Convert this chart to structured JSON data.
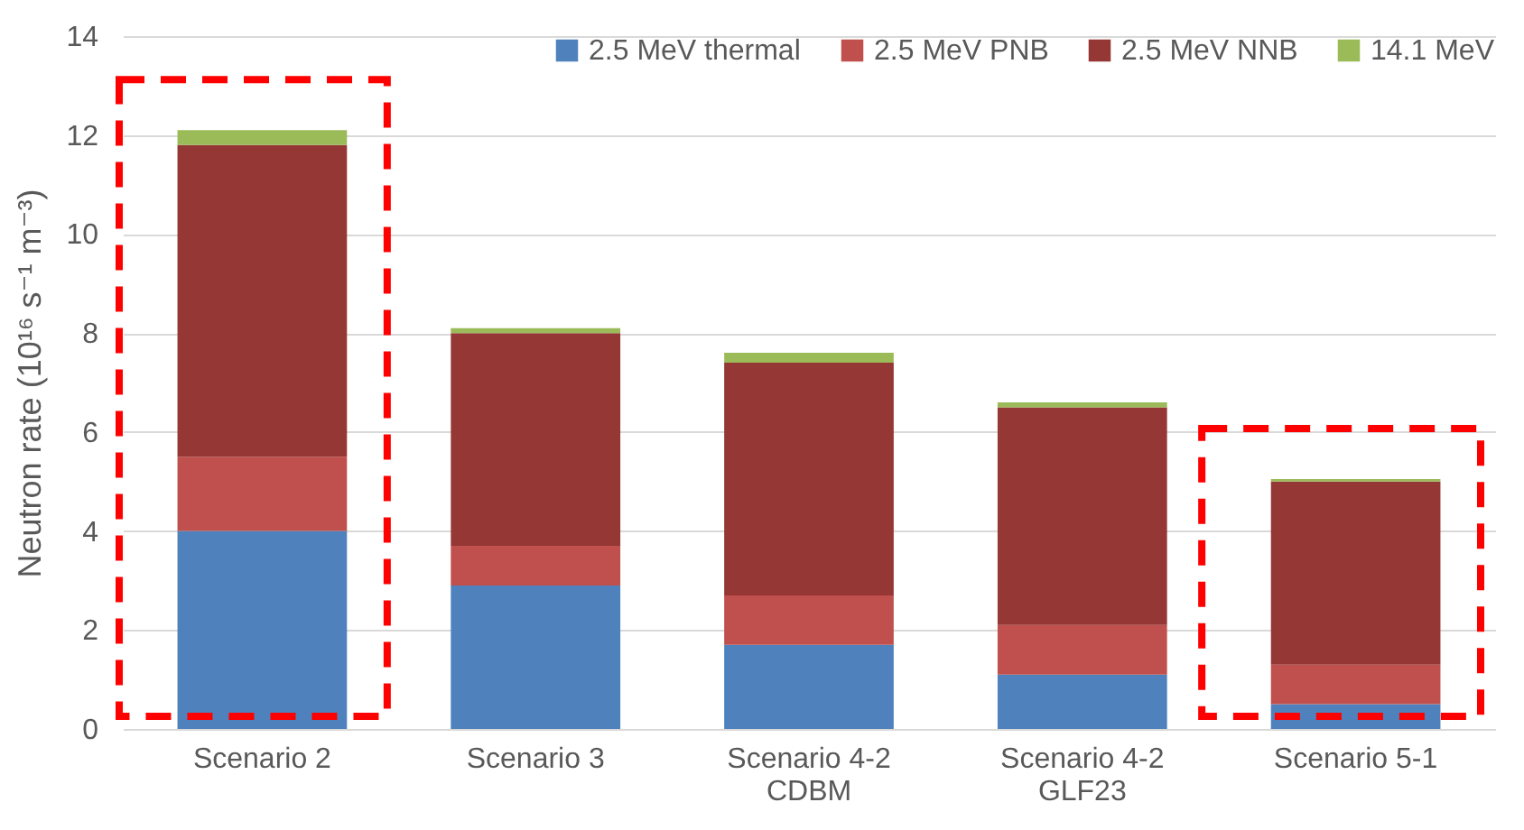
{
  "chart_data": {
    "type": "bar",
    "stacked": true,
    "ylabel": "Neutron rate (10¹⁶ s⁻¹ m⁻³)",
    "categories": [
      "Scenario 2",
      "Scenario 3",
      "Scenario 4-2 CDBM",
      "Scenario 4-2 GLF23",
      "Scenario 5-1"
    ],
    "series": [
      {
        "name": "2.5 MeV thermal",
        "color": "#4f81bd",
        "values": [
          4.0,
          2.9,
          1.7,
          1.1,
          0.5
        ]
      },
      {
        "name": "2.5 MeV PNB",
        "color": "#c0504d",
        "values": [
          1.5,
          0.8,
          1.0,
          1.0,
          0.8
        ]
      },
      {
        "name": "2.5 MeV NNB",
        "color": "#953735",
        "values": [
          6.3,
          4.3,
          4.7,
          4.4,
          3.7
        ]
      },
      {
        "name": "14.1 MeV",
        "color": "#9bbb59",
        "values": [
          0.3,
          0.1,
          0.2,
          0.1,
          0.05
        ]
      }
    ],
    "ylim": [
      0,
      14
    ],
    "yticks": [
      0,
      2,
      4,
      6,
      8,
      10,
      12,
      14
    ],
    "grid": "y",
    "legend": "top right"
  }
}
